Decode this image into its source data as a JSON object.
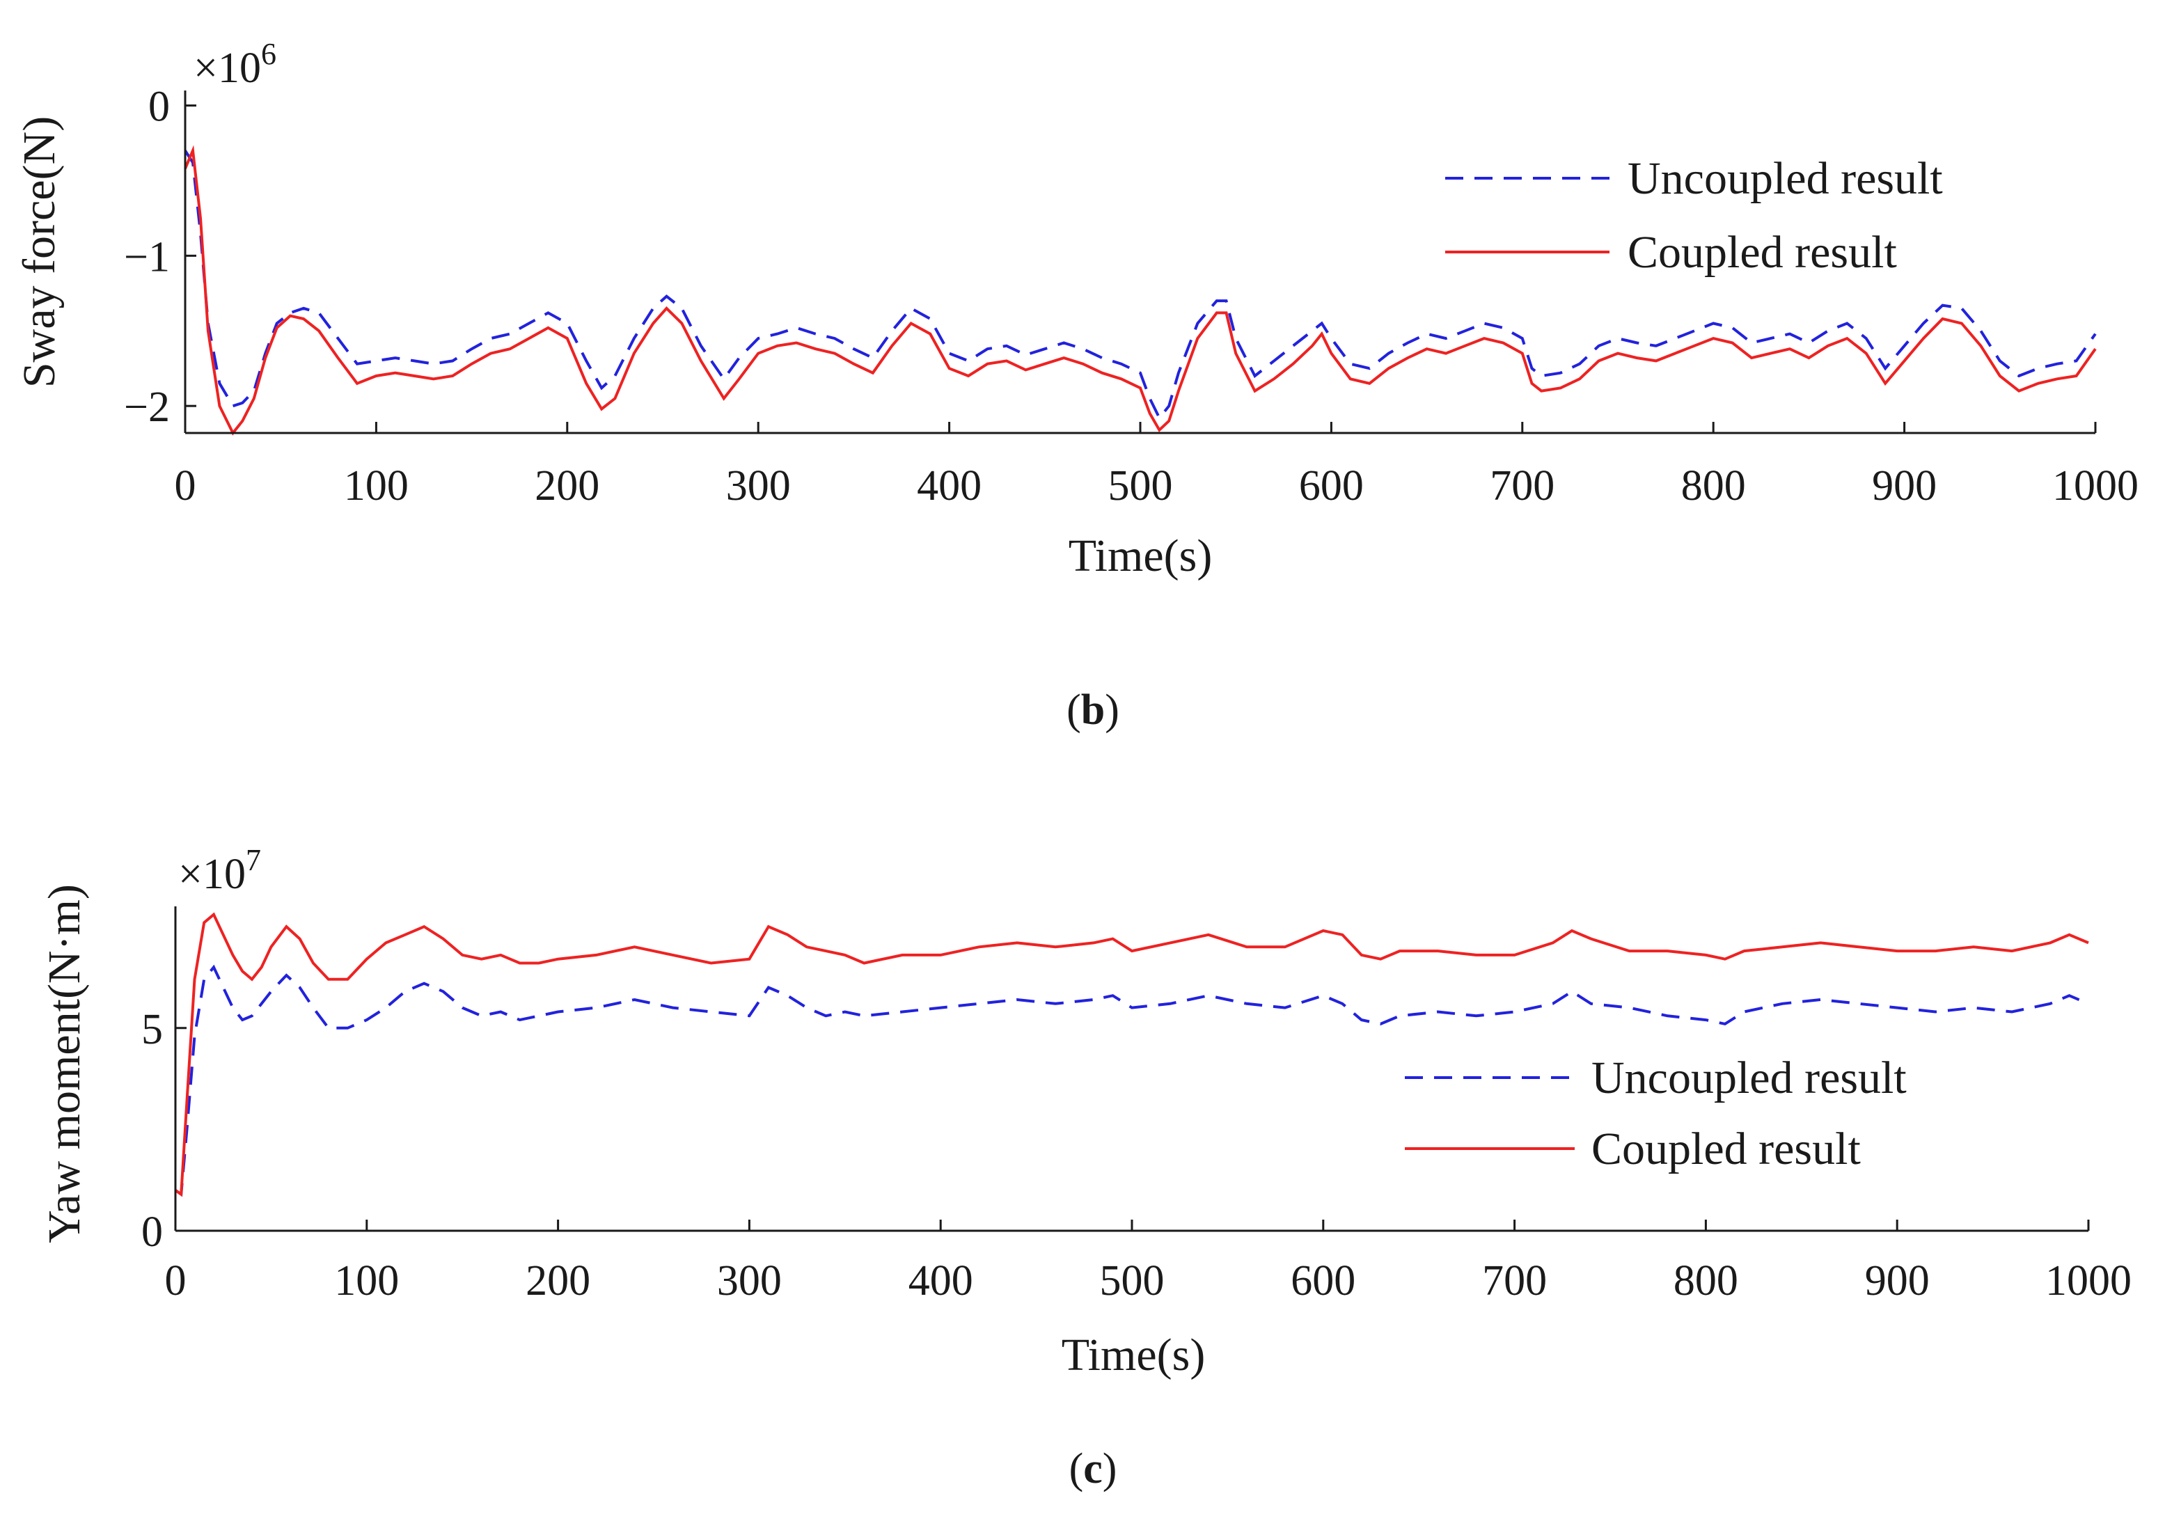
{
  "chart_data": [
    {
      "type": "line",
      "panel": "b",
      "title": "",
      "xlabel": "Time(s)",
      "ylabel": "Sway force(N)",
      "y_multiplier": "×10",
      "y_multiplier_exp": "6",
      "xlim": [
        0,
        1000
      ],
      "ylim": [
        -2.18,
        0.1
      ],
      "xticks": [
        0,
        100,
        200,
        300,
        400,
        500,
        600,
        700,
        800,
        900,
        1000
      ],
      "yticks": [
        0,
        -1,
        -2
      ],
      "ytick_labels": [
        "0",
        "−1",
        "−2"
      ],
      "legend_position": "top-right",
      "caption_open": "(",
      "caption_letter": "b",
      "caption_close": ")",
      "series": [
        {
          "name": "Uncoupled result",
          "style": "dashed",
          "color": "#2222dd",
          "x": [
            0,
            4,
            8,
            12,
            18,
            25,
            30,
            36,
            42,
            48,
            55,
            62,
            70,
            80,
            90,
            100,
            110,
            120,
            130,
            140,
            150,
            160,
            170,
            180,
            190,
            200,
            210,
            218,
            225,
            235,
            245,
            252,
            260,
            270,
            282,
            290,
            300,
            310,
            320,
            330,
            340,
            350,
            360,
            370,
            380,
            390,
            400,
            410,
            420,
            430,
            440,
            450,
            460,
            470,
            480,
            490,
            500,
            505,
            510,
            515,
            520,
            530,
            540,
            545,
            550,
            560,
            570,
            580,
            590,
            595,
            600,
            610,
            620,
            630,
            640,
            650,
            660,
            670,
            680,
            690,
            700,
            705,
            710,
            720,
            730,
            740,
            750,
            760,
            770,
            780,
            790,
            800,
            810,
            820,
            830,
            840,
            850,
            860,
            870,
            880,
            890,
            900,
            910,
            920,
            930,
            940,
            950,
            960,
            970,
            980,
            990,
            1000
          ],
          "y": [
            -0.3,
            -0.38,
            -0.85,
            -1.45,
            -1.85,
            -2.0,
            -1.98,
            -1.9,
            -1.65,
            -1.45,
            -1.38,
            -1.35,
            -1.38,
            -1.55,
            -1.72,
            -1.7,
            -1.68,
            -1.7,
            -1.72,
            -1.7,
            -1.62,
            -1.55,
            -1.52,
            -1.45,
            -1.38,
            -1.45,
            -1.7,
            -1.88,
            -1.8,
            -1.55,
            -1.35,
            -1.27,
            -1.35,
            -1.6,
            -1.82,
            -1.68,
            -1.55,
            -1.52,
            -1.48,
            -1.52,
            -1.55,
            -1.62,
            -1.68,
            -1.5,
            -1.35,
            -1.42,
            -1.65,
            -1.7,
            -1.62,
            -1.6,
            -1.66,
            -1.62,
            -1.58,
            -1.62,
            -1.68,
            -1.72,
            -1.78,
            -1.95,
            -2.08,
            -2.0,
            -1.78,
            -1.45,
            -1.3,
            -1.3,
            -1.55,
            -1.8,
            -1.7,
            -1.6,
            -1.5,
            -1.45,
            -1.55,
            -1.72,
            -1.75,
            -1.65,
            -1.58,
            -1.52,
            -1.55,
            -1.5,
            -1.45,
            -1.48,
            -1.55,
            -1.75,
            -1.8,
            -1.78,
            -1.72,
            -1.6,
            -1.55,
            -1.58,
            -1.6,
            -1.55,
            -1.5,
            -1.45,
            -1.48,
            -1.58,
            -1.55,
            -1.52,
            -1.58,
            -1.5,
            -1.45,
            -1.55,
            -1.75,
            -1.6,
            -1.45,
            -1.33,
            -1.35,
            -1.5,
            -1.7,
            -1.8,
            -1.75,
            -1.72,
            -1.7,
            -1.52
          ]
        },
        {
          "name": "Coupled result",
          "style": "solid",
          "color": "#ee2222",
          "x": [
            0,
            4,
            8,
            12,
            18,
            25,
            30,
            36,
            42,
            48,
            55,
            62,
            70,
            80,
            90,
            100,
            110,
            120,
            130,
            140,
            150,
            160,
            170,
            180,
            190,
            200,
            210,
            218,
            225,
            235,
            245,
            252,
            260,
            270,
            282,
            290,
            300,
            310,
            320,
            330,
            340,
            350,
            360,
            370,
            380,
            390,
            400,
            410,
            420,
            430,
            440,
            450,
            460,
            470,
            480,
            490,
            500,
            505,
            510,
            515,
            520,
            530,
            540,
            545,
            550,
            560,
            570,
            580,
            590,
            595,
            600,
            610,
            620,
            630,
            640,
            650,
            660,
            670,
            680,
            690,
            700,
            705,
            710,
            720,
            730,
            740,
            750,
            760,
            770,
            780,
            790,
            800,
            810,
            820,
            830,
            840,
            850,
            860,
            870,
            880,
            890,
            900,
            910,
            920,
            930,
            940,
            950,
            960,
            970,
            980,
            990,
            1000
          ],
          "y": [
            -0.42,
            -0.3,
            -0.75,
            -1.5,
            -2.0,
            -2.18,
            -2.1,
            -1.95,
            -1.68,
            -1.48,
            -1.4,
            -1.42,
            -1.5,
            -1.68,
            -1.85,
            -1.8,
            -1.78,
            -1.8,
            -1.82,
            -1.8,
            -1.72,
            -1.65,
            -1.62,
            -1.55,
            -1.48,
            -1.55,
            -1.85,
            -2.02,
            -1.95,
            -1.65,
            -1.45,
            -1.35,
            -1.45,
            -1.7,
            -1.95,
            -1.82,
            -1.65,
            -1.6,
            -1.58,
            -1.62,
            -1.65,
            -1.72,
            -1.78,
            -1.6,
            -1.45,
            -1.52,
            -1.75,
            -1.8,
            -1.72,
            -1.7,
            -1.76,
            -1.72,
            -1.68,
            -1.72,
            -1.78,
            -1.82,
            -1.88,
            -2.05,
            -2.16,
            -2.1,
            -1.9,
            -1.55,
            -1.38,
            -1.38,
            -1.65,
            -1.9,
            -1.82,
            -1.72,
            -1.6,
            -1.52,
            -1.65,
            -1.82,
            -1.85,
            -1.75,
            -1.68,
            -1.62,
            -1.65,
            -1.6,
            -1.55,
            -1.58,
            -1.65,
            -1.85,
            -1.9,
            -1.88,
            -1.82,
            -1.7,
            -1.65,
            -1.68,
            -1.7,
            -1.65,
            -1.6,
            -1.55,
            -1.58,
            -1.68,
            -1.65,
            -1.62,
            -1.68,
            -1.6,
            -1.55,
            -1.65,
            -1.85,
            -1.7,
            -1.55,
            -1.42,
            -1.45,
            -1.6,
            -1.8,
            -1.9,
            -1.85,
            -1.82,
            -1.8,
            -1.62
          ]
        }
      ]
    },
    {
      "type": "line",
      "panel": "c",
      "title": "",
      "xlabel": "Time(s)",
      "ylabel": "Yaw moment(N·m)",
      "y_multiplier": "×10",
      "y_multiplier_exp": "7",
      "xlim": [
        0,
        1000
      ],
      "ylim": [
        0,
        8
      ],
      "xticks": [
        0,
        100,
        200,
        300,
        400,
        500,
        600,
        700,
        800,
        900,
        1000
      ],
      "yticks": [
        0,
        5
      ],
      "ytick_labels": [
        "0",
        "5"
      ],
      "legend_position": "center-right",
      "caption_open": "(",
      "caption_letter": "c",
      "caption_close": ")",
      "series": [
        {
          "name": "Uncoupled result",
          "style": "dashed",
          "color": "#2222dd",
          "x": [
            0,
            3,
            6,
            10,
            15,
            20,
            25,
            30,
            35,
            40,
            45,
            50,
            58,
            65,
            72,
            80,
            90,
            100,
            110,
            120,
            130,
            140,
            150,
            160,
            170,
            180,
            190,
            200,
            220,
            240,
            260,
            280,
            300,
            310,
            320,
            330,
            340,
            350,
            360,
            380,
            400,
            420,
            440,
            460,
            480,
            490,
            500,
            520,
            540,
            560,
            580,
            600,
            610,
            620,
            630,
            640,
            660,
            680,
            700,
            720,
            730,
            740,
            760,
            780,
            800,
            810,
            820,
            840,
            860,
            880,
            900,
            920,
            940,
            960,
            980,
            990,
            1000
          ],
          "y": [
            1.0,
            0.9,
            2.5,
            4.8,
            6.2,
            6.5,
            6.0,
            5.5,
            5.2,
            5.3,
            5.6,
            5.9,
            6.3,
            6.0,
            5.5,
            5.0,
            5.0,
            5.2,
            5.5,
            5.9,
            6.1,
            5.9,
            5.5,
            5.3,
            5.4,
            5.2,
            5.3,
            5.4,
            5.5,
            5.7,
            5.5,
            5.4,
            5.3,
            6.0,
            5.8,
            5.5,
            5.3,
            5.4,
            5.3,
            5.4,
            5.5,
            5.6,
            5.7,
            5.6,
            5.7,
            5.8,
            5.5,
            5.6,
            5.8,
            5.6,
            5.5,
            5.8,
            5.6,
            5.2,
            5.1,
            5.3,
            5.4,
            5.3,
            5.4,
            5.6,
            5.9,
            5.6,
            5.5,
            5.3,
            5.2,
            5.1,
            5.4,
            5.6,
            5.7,
            5.6,
            5.5,
            5.4,
            5.5,
            5.4,
            5.6,
            5.8,
            5.6
          ]
        },
        {
          "name": "Coupled result",
          "style": "solid",
          "color": "#ee2222",
          "x": [
            0,
            3,
            6,
            10,
            15,
            20,
            25,
            30,
            35,
            40,
            45,
            50,
            58,
            65,
            72,
            80,
            90,
            100,
            110,
            120,
            130,
            140,
            150,
            160,
            170,
            180,
            190,
            200,
            220,
            240,
            260,
            280,
            300,
            310,
            320,
            330,
            340,
            350,
            360,
            380,
            400,
            420,
            440,
            460,
            480,
            490,
            500,
            520,
            540,
            560,
            580,
            600,
            610,
            620,
            630,
            640,
            660,
            680,
            700,
            720,
            730,
            740,
            760,
            780,
            800,
            810,
            820,
            840,
            860,
            880,
            900,
            920,
            940,
            960,
            980,
            990,
            1000
          ],
          "y": [
            1.0,
            0.9,
            3.2,
            6.2,
            7.6,
            7.8,
            7.3,
            6.8,
            6.4,
            6.2,
            6.5,
            7.0,
            7.5,
            7.2,
            6.6,
            6.2,
            6.2,
            6.7,
            7.1,
            7.3,
            7.5,
            7.2,
            6.8,
            6.7,
            6.8,
            6.6,
            6.6,
            6.7,
            6.8,
            7.0,
            6.8,
            6.6,
            6.7,
            7.5,
            7.3,
            7.0,
            6.9,
            6.8,
            6.6,
            6.8,
            6.8,
            7.0,
            7.1,
            7.0,
            7.1,
            7.2,
            6.9,
            7.1,
            7.3,
            7.0,
            7.0,
            7.4,
            7.3,
            6.8,
            6.7,
            6.9,
            6.9,
            6.8,
            6.8,
            7.1,
            7.4,
            7.2,
            6.9,
            6.9,
            6.8,
            6.7,
            6.9,
            7.0,
            7.1,
            7.0,
            6.9,
            6.9,
            7.0,
            6.9,
            7.1,
            7.3,
            7.1
          ]
        }
      ]
    }
  ]
}
